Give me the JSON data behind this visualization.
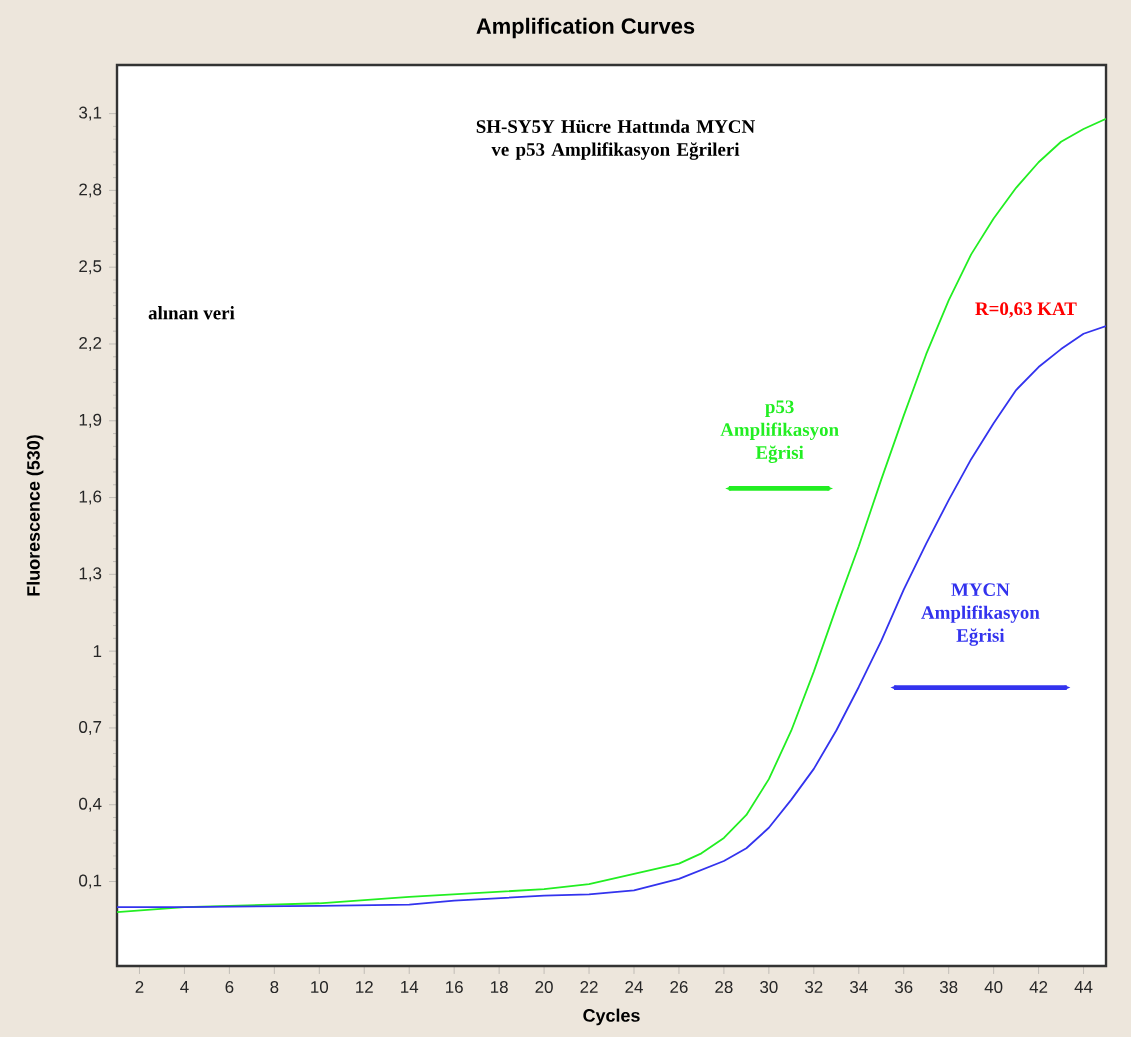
{
  "chart_data": {
    "type": "line",
    "title": "Amplification Curves",
    "xlabel": "Cycles",
    "ylabel": "Fluorescence (530)",
    "xlim": [
      1,
      45
    ],
    "ylim": [
      -0.23,
      3.29
    ],
    "xticks": [
      2,
      4,
      6,
      8,
      10,
      12,
      14,
      16,
      18,
      20,
      22,
      24,
      26,
      28,
      30,
      32,
      34,
      36,
      38,
      40,
      42,
      44
    ],
    "yticks": [
      {
        "value": 0.1,
        "label": "0,1"
      },
      {
        "value": 0.4,
        "label": "0,4"
      },
      {
        "value": 0.7,
        "label": "0,7"
      },
      1,
      {
        "value": 1.3,
        "label": "1,3"
      },
      {
        "value": 1.6,
        "label": "1,6"
      },
      {
        "value": 1.9,
        "label": "1,9"
      },
      {
        "value": 2.2,
        "label": "2,2"
      },
      {
        "value": 2.5,
        "label": "2,5"
      },
      {
        "value": 2.8,
        "label": "2,8"
      },
      {
        "value": 3.1,
        "label": "3,1"
      }
    ],
    "grid": false,
    "legend": false,
    "marker": "none",
    "line_style": "solid",
    "annotations": [
      "SH-SY5Y Hücre Hattında MYCN ve p53 Amplifikasyon Eğrileri",
      "alınan veri",
      "R=0,63 KAT"
    ],
    "series": [
      {
        "name": "p53 Amplifikasyon Eğrisi",
        "color": "#22ee22",
        "x": [
          1,
          4,
          10,
          14,
          20,
          22,
          24,
          26,
          27,
          28,
          29,
          30,
          31,
          32,
          33,
          34,
          35,
          36,
          37,
          38,
          39,
          40,
          41,
          42,
          43,
          44,
          45
        ],
        "values": [
          -0.02,
          0.0,
          0.015,
          0.04,
          0.07,
          0.09,
          0.13,
          0.17,
          0.21,
          0.27,
          0.36,
          0.5,
          0.69,
          0.92,
          1.17,
          1.41,
          1.67,
          1.92,
          2.16,
          2.37,
          2.55,
          2.69,
          2.81,
          2.91,
          2.99,
          3.04,
          3.08
        ]
      },
      {
        "name": "MYCN Amplifikasyon Eğrisi",
        "color": "#3333ee",
        "x": [
          1,
          4,
          10,
          14,
          16,
          20,
          22,
          24,
          26,
          28,
          29,
          30,
          31,
          32,
          33,
          34,
          35,
          36,
          37,
          38,
          39,
          40,
          41,
          42,
          43,
          44,
          45
        ],
        "values": [
          0.0,
          0.0,
          0.005,
          0.01,
          0.025,
          0.045,
          0.05,
          0.065,
          0.11,
          0.18,
          0.23,
          0.31,
          0.42,
          0.54,
          0.69,
          0.86,
          1.04,
          1.24,
          1.42,
          1.59,
          1.75,
          1.89,
          2.02,
          2.11,
          2.18,
          2.24,
          2.27
        ]
      }
    ]
  }
}
